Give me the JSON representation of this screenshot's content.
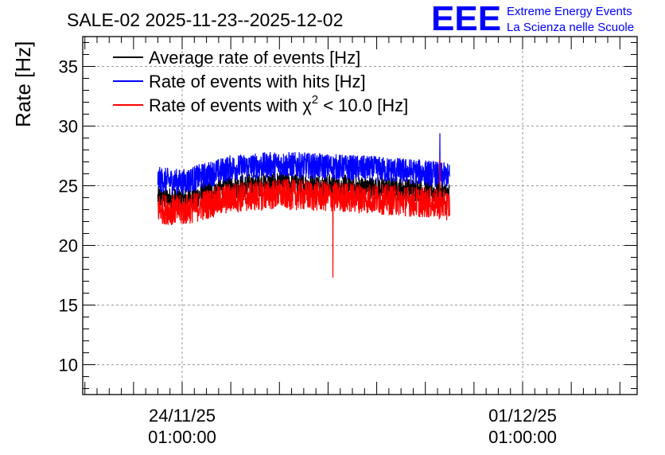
{
  "chart_data": {
    "type": "line",
    "title": "SALE-02 2025-11-23--2025-12-02",
    "ylabel": "Rate [Hz]",
    "xlabel": "",
    "ylim": [
      7.5,
      37.5
    ],
    "yticks": [
      10,
      15,
      20,
      25,
      30,
      35
    ],
    "x_range_days": [
      -0.5,
      5.5
    ],
    "xticks": [
      {
        "day": 0,
        "label_date": "24/11/25",
        "label_time": "01:00:00"
      },
      {
        "day": 7,
        "label_date": "01/12/25",
        "label_time": "01:00:00"
      }
    ],
    "x_start": "2025-11-23T01:00:00",
    "x_end": "2025-12-02T01:00:00",
    "grid": true,
    "legend_position": "top-left",
    "series": [
      {
        "name": "Average rate of events [Hz]",
        "color": "#000000",
        "profile_x_days": [
          -1,
          0,
          1,
          2,
          3,
          4,
          5,
          6,
          7,
          8
        ],
        "profile_mid": [
          24.2,
          23.8,
          24.9,
          25.2,
          25.0,
          24.8,
          24.6,
          24.0,
          23.9,
          23.9
        ],
        "noise_amplitude": 1.0
      },
      {
        "name": "Rate of events with hits [Hz]",
        "color": "#0000ff",
        "profile_x_days": [
          -1,
          0,
          1,
          2,
          3,
          4,
          5,
          6,
          7,
          8
        ],
        "profile_mid": [
          25.7,
          25.3,
          26.5,
          26.8,
          26.6,
          26.4,
          26.1,
          25.5,
          25.6,
          25.6
        ],
        "noise_amplitude": 1.1,
        "spikes": [
          {
            "x_day": 5.3,
            "value": 29.4
          }
        ]
      },
      {
        "name": "Rate of events with χ² < 10.0 [Hz]",
        "color": "#ff0000",
        "profile_x_days": [
          -1,
          0,
          1,
          2,
          3,
          4,
          5,
          6,
          7,
          8
        ],
        "profile_mid": [
          23.3,
          22.9,
          24.0,
          24.3,
          24.1,
          23.9,
          23.6,
          23.1,
          23.0,
          23.0
        ],
        "noise_amplitude": 1.3,
        "spikes": [
          {
            "x_day": 3.1,
            "value": 17.3
          },
          {
            "x_day": 5.3,
            "value": 27.2
          }
        ]
      }
    ],
    "legend": [
      {
        "text": "Average rate of events [Hz]",
        "color": "#000000"
      },
      {
        "text": "Rate of events with hits [Hz]",
        "color": "#0000ff"
      },
      {
        "text_main": "Rate of events with χ",
        "sup": "2",
        "text_tail": " < 10.0 [Hz]",
        "color": "#ff0000"
      }
    ]
  },
  "logo": {
    "mark": "EEE",
    "line1": "Extreme Energy Events",
    "line2": "La Scienza nelle Scuole",
    "color": "#0000ff"
  }
}
